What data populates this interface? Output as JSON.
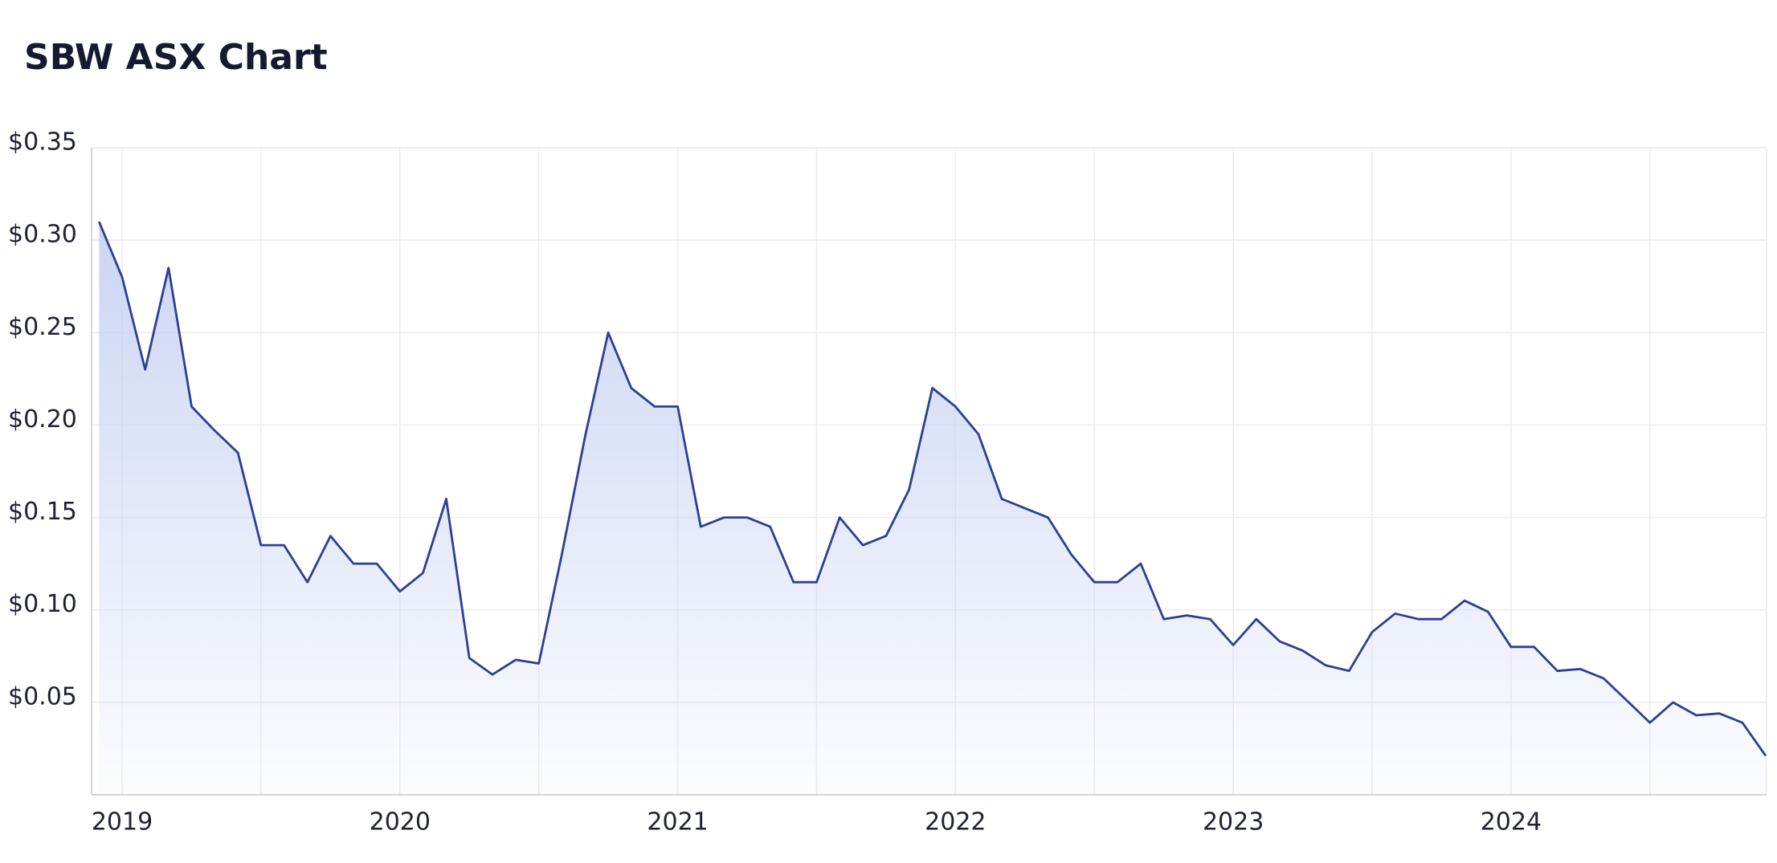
{
  "chart_data": {
    "type": "line",
    "title": "SBW ASX Chart",
    "x": [
      2018.917,
      2019.0,
      2019.083,
      2019.167,
      2019.25,
      2019.333,
      2019.417,
      2019.5,
      2019.583,
      2019.667,
      2019.75,
      2019.833,
      2019.917,
      2020.0,
      2020.083,
      2020.167,
      2020.25,
      2020.333,
      2020.417,
      2020.5,
      2020.583,
      2020.667,
      2020.75,
      2020.833,
      2020.917,
      2021.0,
      2021.083,
      2021.167,
      2021.25,
      2021.333,
      2021.417,
      2021.5,
      2021.583,
      2021.667,
      2021.75,
      2021.833,
      2021.917,
      2022.0,
      2022.083,
      2022.167,
      2022.25,
      2022.333,
      2022.417,
      2022.5,
      2022.583,
      2022.667,
      2022.75,
      2022.833,
      2022.917,
      2023.0,
      2023.083,
      2023.167,
      2023.25,
      2023.333,
      2023.417,
      2023.5,
      2023.583,
      2023.667,
      2023.75,
      2023.833,
      2023.917,
      2024.0,
      2024.083,
      2024.167,
      2024.25,
      2024.333,
      2024.417,
      2024.5,
      2024.583,
      2024.667,
      2024.75,
      2024.833,
      2024.917
    ],
    "series": [
      {
        "name": "SBW",
        "color": "#2e3f8f",
        "fill": "#c5d0f3",
        "values": [
          0.31,
          0.28,
          0.23,
          0.285,
          0.21,
          0.197,
          0.185,
          0.135,
          0.135,
          0.115,
          0.14,
          0.125,
          0.125,
          0.11,
          0.12,
          0.16,
          0.074,
          0.065,
          0.073,
          0.071,
          0.13,
          0.194,
          0.25,
          0.22,
          0.21,
          0.21,
          0.145,
          0.15,
          0.15,
          0.145,
          0.115,
          0.115,
          0.15,
          0.135,
          0.14,
          0.165,
          0.22,
          0.21,
          0.195,
          0.16,
          0.155,
          0.15,
          0.13,
          0.115,
          0.115,
          0.125,
          0.095,
          0.097,
          0.095,
          0.081,
          0.095,
          0.083,
          0.078,
          0.07,
          0.067,
          0.088,
          0.098,
          0.095,
          0.095,
          0.105,
          0.099,
          0.08,
          0.08,
          0.067,
          0.068,
          0.063,
          0.051,
          0.039,
          0.05,
          0.043,
          0.044,
          0.039,
          0.021
        ]
      }
    ],
    "xlim": [
      2018.89,
      2024.92
    ],
    "xticks": [
      2019,
      2020,
      2021,
      2022,
      2023,
      2024
    ],
    "xminor_ticks": [
      2019.5,
      2020.5,
      2021.5,
      2022.5,
      2023.5,
      2024.5
    ],
    "ylim": [
      0,
      0.35
    ],
    "yticks": [
      {
        "value": 0.05,
        "label": "$0.05"
      },
      {
        "value": 0.1,
        "label": "$0.10"
      },
      {
        "value": 0.15,
        "label": "$0.15"
      },
      {
        "value": 0.2,
        "label": "$0.20"
      },
      {
        "value": 0.25,
        "label": "$0.25"
      },
      {
        "value": 0.3,
        "label": "$0.30"
      },
      {
        "value": 0.35,
        "label": "$0.35"
      }
    ],
    "grid": true
  }
}
